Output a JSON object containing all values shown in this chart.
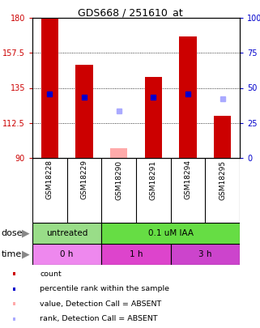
{
  "title": "GDS668 / 251610_at",
  "samples": [
    "GSM18228",
    "GSM18229",
    "GSM18290",
    "GSM18291",
    "GSM18294",
    "GSM18295"
  ],
  "bar_values": [
    180,
    150,
    null,
    142,
    168,
    117
  ],
  "bar_color": "#cc0000",
  "absent_bar_values": [
    null,
    null,
    96,
    null,
    null,
    null
  ],
  "absent_bar_color": "#ffaaaa",
  "rank_values": [
    131,
    129,
    null,
    129,
    131,
    null
  ],
  "rank_color": "#0000cc",
  "absent_rank_values": [
    null,
    null,
    120,
    null,
    null,
    128
  ],
  "absent_rank_color": "#aaaaff",
  "ylim_left": [
    90,
    180
  ],
  "ylim_right": [
    0,
    100
  ],
  "yticks_left": [
    90,
    112.5,
    135,
    157.5,
    180
  ],
  "yticks_right": [
    0,
    25,
    50,
    75,
    100
  ],
  "ytick_labels_left": [
    "90",
    "112.5",
    "135",
    "157.5",
    "180"
  ],
  "ytick_labels_right": [
    "0",
    "25",
    "50",
    "75",
    "100%"
  ],
  "left_tick_color": "#cc0000",
  "right_tick_color": "#0000cc",
  "dose_groups": [
    {
      "label": "untreated",
      "cols": [
        0,
        1
      ],
      "color": "#99dd88"
    },
    {
      "label": "0.1 uM IAA",
      "cols": [
        2,
        3,
        4,
        5
      ],
      "color": "#66dd44"
    }
  ],
  "time_groups": [
    {
      "label": "0 h",
      "cols": [
        0,
        1
      ],
      "color": "#ee88ee"
    },
    {
      "label": "1 h",
      "cols": [
        2,
        3
      ],
      "color": "#dd44cc"
    },
    {
      "label": "3 h",
      "cols": [
        4,
        5
      ],
      "color": "#cc44cc"
    }
  ],
  "legend_items": [
    {
      "color": "#cc0000",
      "label": "count"
    },
    {
      "color": "#0000cc",
      "label": "percentile rank within the sample"
    },
    {
      "color": "#ffaaaa",
      "label": "value, Detection Call = ABSENT"
    },
    {
      "color": "#aaaaff",
      "label": "rank, Detection Call = ABSENT"
    }
  ],
  "dose_label": "dose",
  "time_label": "time",
  "xlabel_bg": "#cccccc",
  "bar_width": 0.5
}
